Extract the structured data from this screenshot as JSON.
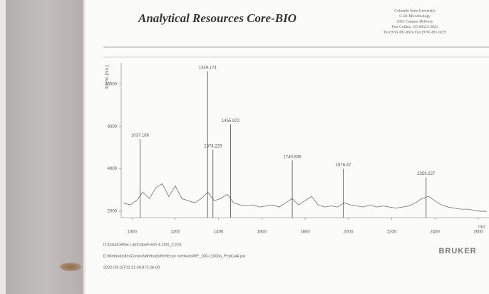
{
  "header": {
    "title": "Analytical Resources Core-BIO",
    "address": [
      "Colorado State University",
      "C121 Microbiology",
      "2021 Campus Delivery",
      "Fort Collins, CO 80523-2021",
      "Tel (970) 491-0624 Fax (970) 491-0229"
    ]
  },
  "chart_data": {
    "type": "spectrum",
    "y_label": "Intens. [a.u.]",
    "x_label": "m/z",
    "color": "#6e6e6e",
    "x": [
      960,
      990,
      1020,
      1050,
      1080,
      1110,
      1140,
      1170,
      1200,
      1230,
      1260,
      1290,
      1320,
      1350,
      1380,
      1410,
      1440,
      1470,
      1500,
      1530,
      1560,
      1590,
      1620,
      1650,
      1680,
      1710,
      1740,
      1770,
      1800,
      1830,
      1860,
      1890,
      1920,
      1950,
      1980,
      2010,
      2040,
      2070,
      2100,
      2130,
      2160,
      2190,
      2220,
      2250,
      2280,
      2310,
      2340,
      2370,
      2400,
      2430,
      2460,
      2490,
      2520,
      2550,
      2580,
      2610,
      2640
    ],
    "values": [
      2400,
      2300,
      2500,
      2900,
      2600,
      3100,
      3300,
      2700,
      3200,
      2600,
      2500,
      2400,
      2600,
      2900,
      2500,
      2600,
      2800,
      2400,
      2300,
      2250,
      2300,
      2200,
      2250,
      2300,
      2200,
      2400,
      2600,
      2300,
      2500,
      2700,
      2300,
      2200,
      2250,
      2200,
      2400,
      2300,
      2250,
      2200,
      2300,
      2200,
      2250,
      2200,
      2150,
      2200,
      2250,
      2400,
      2600,
      2700,
      2500,
      2300,
      2200,
      2150,
      2100,
      2100,
      2050,
      2000,
      2000
    ],
    "peaks": [
      {
        "mz": 1037.186,
        "intensity": 5400
      },
      {
        "mz": 1349.174,
        "intensity": 8600
      },
      {
        "mz": 1374.229,
        "intensity": 4900
      },
      {
        "mz": 1455.972,
        "intensity": 6100
      },
      {
        "mz": 1740.836,
        "intensity": 4400
      },
      {
        "mz": 1976.47,
        "intensity": 4000
      },
      {
        "mz": 2359.227,
        "intensity": 3600
      }
    ],
    "xlim": [
      950,
      2650
    ],
    "ylim": [
      1700,
      9000
    ],
    "xticks": [
      1000,
      1200,
      1400,
      1600,
      1800,
      2000,
      2200,
      2400,
      2600
    ],
    "yticks": [
      2000,
      4000,
      6000,
      8000
    ]
  },
  "footer": {
    "lines": [
      "D:\\Data\\Deltas Lab\\Data\\Fresh 4-10\\0_C10\\1",
      "D:\\Methods\\flexControl\\Methods\\Reflector methods\\RP_100-11000a_PepCal4.par",
      "2022-04-19T12:21:49.872-06:00"
    ],
    "logo": "BRUKER"
  }
}
